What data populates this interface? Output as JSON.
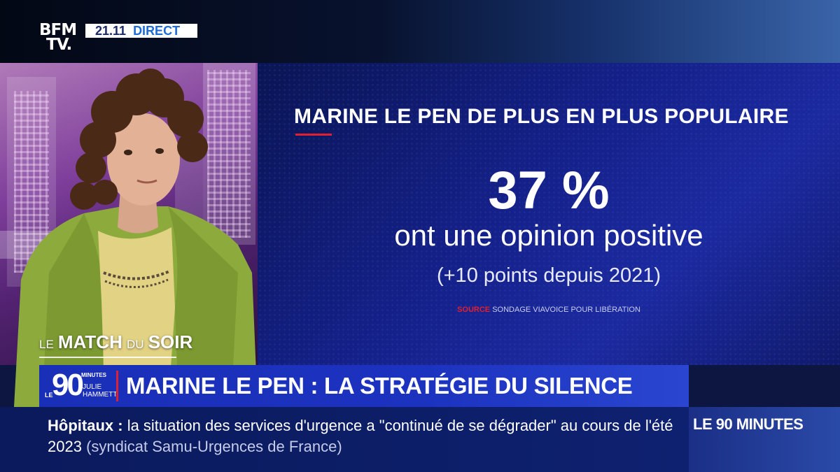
{
  "channel": {
    "logo_line1": "BFM",
    "logo_line2": "TV."
  },
  "top_bar": {
    "time": "21.11",
    "live_label": "DIRECT"
  },
  "graphic": {
    "title": "MARINE LE PEN DE PLUS EN PLUS POPULAIRE",
    "stat_value": "37 %",
    "stat_caption": "ont une opinion positive",
    "stat_detail": "(+10 points depuis 2021)",
    "source_label": "SOURCE",
    "source_text": "SONDAGE VIAVOICE POUR LIBÉRATION"
  },
  "show": {
    "word1": "LE",
    "word2": "MATCH",
    "word3": "DU",
    "word4": "SOIR"
  },
  "headline_bar": {
    "logo_prefix": "LE",
    "logo_number": "90",
    "logo_suffix": "MINUTES",
    "host_first": "JULIE",
    "host_last": "HAMMETT",
    "headline": "MARINE LE PEN : LA STRATÉGIE DU SILENCE"
  },
  "ticker": {
    "topic": "Hôpitaux",
    "separator": " : ",
    "text": "la situation des services d'urgence a \"continué de se dégrader\" au cours de l'été 2023",
    "source": "(syndicat Samu-Urgences de France)",
    "side_label": "LE 90 MINUTES"
  },
  "colors": {
    "accent_red": "#e0202e",
    "panel_blue": "#15218a",
    "bar_blue": "#1c33c0"
  }
}
